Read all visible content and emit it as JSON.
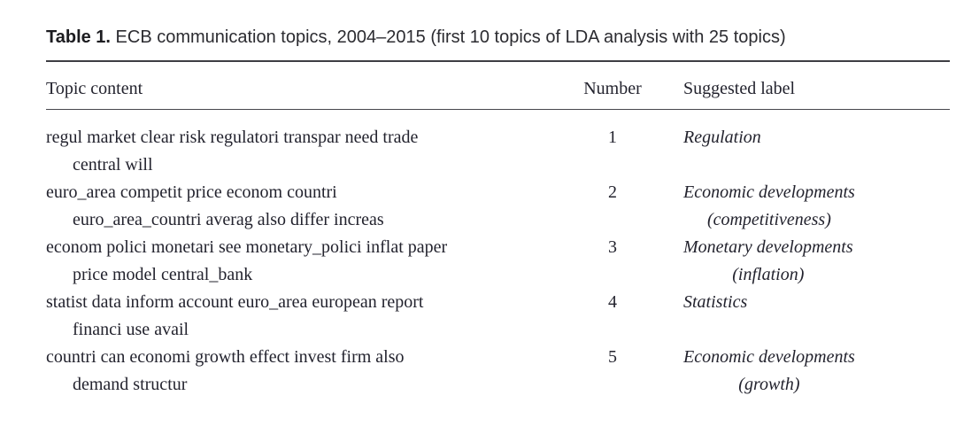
{
  "title": {
    "label": "Table 1.",
    "text": " ECB communication topics, 2004–2015 (first 10 topics of LDA analysis with 25 topics)"
  },
  "table": {
    "headers": {
      "topic": "Topic content",
      "number": "Number",
      "label": "Suggested label"
    },
    "rows": [
      {
        "topic_line1": "regul market clear risk regulatori transpar need trade",
        "topic_line2": "central will",
        "number": "1",
        "label_line1": "Regulation",
        "label_line2": ""
      },
      {
        "topic_line1": "euro_area competit price econom countri",
        "topic_line2": "euro_area_countri averag also differ increas",
        "number": "2",
        "label_line1": "Economic developments",
        "label_line2": "(competitiveness)"
      },
      {
        "topic_line1": "econom polici monetari see monetary_polici inflat paper",
        "topic_line2": "price model central_bank",
        "number": "3",
        "label_line1": "Monetary developments",
        "label_line2": "(inflation)"
      },
      {
        "topic_line1": "statist data inform account euro_area european report",
        "topic_line2": "financi use avail",
        "number": "4",
        "label_line1": "Statistics",
        "label_line2": ""
      },
      {
        "topic_line1": "countri can economi growth effect invest firm also",
        "topic_line2": "demand structur",
        "number": "5",
        "label_line1": "Economic developments",
        "label_line2": "(growth)"
      }
    ]
  }
}
